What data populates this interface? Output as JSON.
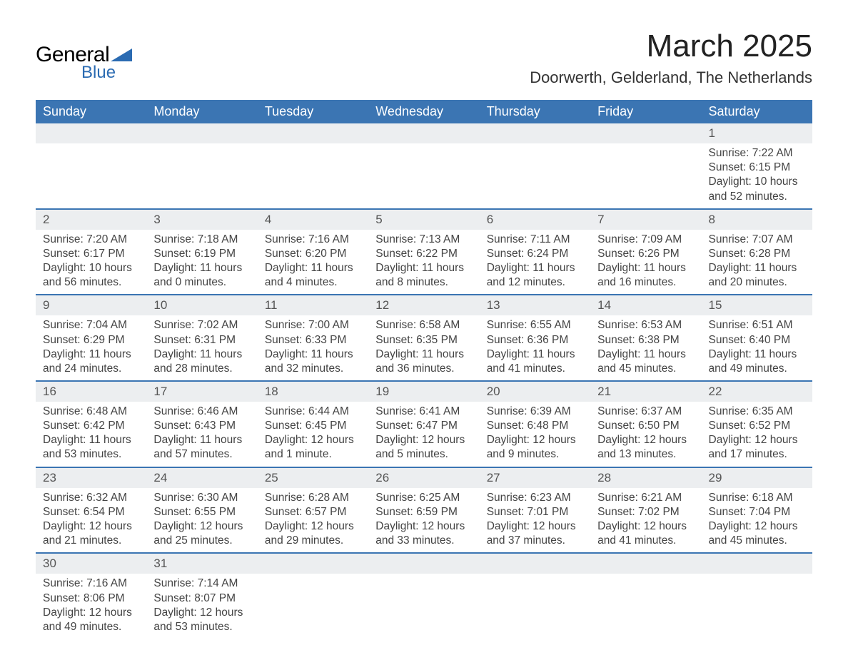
{
  "logo": {
    "text_general": "General",
    "text_blue": "Blue",
    "brand_color": "#2b6bb2"
  },
  "title": "March 2025",
  "location": "Doorwerth, Gelderland, The Netherlands",
  "colors": {
    "header_bg": "#3b75b3",
    "header_text": "#ffffff",
    "daynum_bg": "#eceef0",
    "border": "#3b75b3",
    "body_text": "#444444",
    "page_bg": "#ffffff"
  },
  "typography": {
    "title_fontsize_pt": 33,
    "location_fontsize_pt": 17,
    "dayheader_fontsize_pt": 14,
    "cell_fontsize_pt": 12
  },
  "day_headers": [
    "Sunday",
    "Monday",
    "Tuesday",
    "Wednesday",
    "Thursday",
    "Friday",
    "Saturday"
  ],
  "weeks": [
    [
      null,
      null,
      null,
      null,
      null,
      null,
      {
        "n": "1",
        "sunrise": "Sunrise: 7:22 AM",
        "sunset": "Sunset: 6:15 PM",
        "d1": "Daylight: 10 hours",
        "d2": "and 52 minutes."
      }
    ],
    [
      {
        "n": "2",
        "sunrise": "Sunrise: 7:20 AM",
        "sunset": "Sunset: 6:17 PM",
        "d1": "Daylight: 10 hours",
        "d2": "and 56 minutes."
      },
      {
        "n": "3",
        "sunrise": "Sunrise: 7:18 AM",
        "sunset": "Sunset: 6:19 PM",
        "d1": "Daylight: 11 hours",
        "d2": "and 0 minutes."
      },
      {
        "n": "4",
        "sunrise": "Sunrise: 7:16 AM",
        "sunset": "Sunset: 6:20 PM",
        "d1": "Daylight: 11 hours",
        "d2": "and 4 minutes."
      },
      {
        "n": "5",
        "sunrise": "Sunrise: 7:13 AM",
        "sunset": "Sunset: 6:22 PM",
        "d1": "Daylight: 11 hours",
        "d2": "and 8 minutes."
      },
      {
        "n": "6",
        "sunrise": "Sunrise: 7:11 AM",
        "sunset": "Sunset: 6:24 PM",
        "d1": "Daylight: 11 hours",
        "d2": "and 12 minutes."
      },
      {
        "n": "7",
        "sunrise": "Sunrise: 7:09 AM",
        "sunset": "Sunset: 6:26 PM",
        "d1": "Daylight: 11 hours",
        "d2": "and 16 minutes."
      },
      {
        "n": "8",
        "sunrise": "Sunrise: 7:07 AM",
        "sunset": "Sunset: 6:28 PM",
        "d1": "Daylight: 11 hours",
        "d2": "and 20 minutes."
      }
    ],
    [
      {
        "n": "9",
        "sunrise": "Sunrise: 7:04 AM",
        "sunset": "Sunset: 6:29 PM",
        "d1": "Daylight: 11 hours",
        "d2": "and 24 minutes."
      },
      {
        "n": "10",
        "sunrise": "Sunrise: 7:02 AM",
        "sunset": "Sunset: 6:31 PM",
        "d1": "Daylight: 11 hours",
        "d2": "and 28 minutes."
      },
      {
        "n": "11",
        "sunrise": "Sunrise: 7:00 AM",
        "sunset": "Sunset: 6:33 PM",
        "d1": "Daylight: 11 hours",
        "d2": "and 32 minutes."
      },
      {
        "n": "12",
        "sunrise": "Sunrise: 6:58 AM",
        "sunset": "Sunset: 6:35 PM",
        "d1": "Daylight: 11 hours",
        "d2": "and 36 minutes."
      },
      {
        "n": "13",
        "sunrise": "Sunrise: 6:55 AM",
        "sunset": "Sunset: 6:36 PM",
        "d1": "Daylight: 11 hours",
        "d2": "and 41 minutes."
      },
      {
        "n": "14",
        "sunrise": "Sunrise: 6:53 AM",
        "sunset": "Sunset: 6:38 PM",
        "d1": "Daylight: 11 hours",
        "d2": "and 45 minutes."
      },
      {
        "n": "15",
        "sunrise": "Sunrise: 6:51 AM",
        "sunset": "Sunset: 6:40 PM",
        "d1": "Daylight: 11 hours",
        "d2": "and 49 minutes."
      }
    ],
    [
      {
        "n": "16",
        "sunrise": "Sunrise: 6:48 AM",
        "sunset": "Sunset: 6:42 PM",
        "d1": "Daylight: 11 hours",
        "d2": "and 53 minutes."
      },
      {
        "n": "17",
        "sunrise": "Sunrise: 6:46 AM",
        "sunset": "Sunset: 6:43 PM",
        "d1": "Daylight: 11 hours",
        "d2": "and 57 minutes."
      },
      {
        "n": "18",
        "sunrise": "Sunrise: 6:44 AM",
        "sunset": "Sunset: 6:45 PM",
        "d1": "Daylight: 12 hours",
        "d2": "and 1 minute."
      },
      {
        "n": "19",
        "sunrise": "Sunrise: 6:41 AM",
        "sunset": "Sunset: 6:47 PM",
        "d1": "Daylight: 12 hours",
        "d2": "and 5 minutes."
      },
      {
        "n": "20",
        "sunrise": "Sunrise: 6:39 AM",
        "sunset": "Sunset: 6:48 PM",
        "d1": "Daylight: 12 hours",
        "d2": "and 9 minutes."
      },
      {
        "n": "21",
        "sunrise": "Sunrise: 6:37 AM",
        "sunset": "Sunset: 6:50 PM",
        "d1": "Daylight: 12 hours",
        "d2": "and 13 minutes."
      },
      {
        "n": "22",
        "sunrise": "Sunrise: 6:35 AM",
        "sunset": "Sunset: 6:52 PM",
        "d1": "Daylight: 12 hours",
        "d2": "and 17 minutes."
      }
    ],
    [
      {
        "n": "23",
        "sunrise": "Sunrise: 6:32 AM",
        "sunset": "Sunset: 6:54 PM",
        "d1": "Daylight: 12 hours",
        "d2": "and 21 minutes."
      },
      {
        "n": "24",
        "sunrise": "Sunrise: 6:30 AM",
        "sunset": "Sunset: 6:55 PM",
        "d1": "Daylight: 12 hours",
        "d2": "and 25 minutes."
      },
      {
        "n": "25",
        "sunrise": "Sunrise: 6:28 AM",
        "sunset": "Sunset: 6:57 PM",
        "d1": "Daylight: 12 hours",
        "d2": "and 29 minutes."
      },
      {
        "n": "26",
        "sunrise": "Sunrise: 6:25 AM",
        "sunset": "Sunset: 6:59 PM",
        "d1": "Daylight: 12 hours",
        "d2": "and 33 minutes."
      },
      {
        "n": "27",
        "sunrise": "Sunrise: 6:23 AM",
        "sunset": "Sunset: 7:01 PM",
        "d1": "Daylight: 12 hours",
        "d2": "and 37 minutes."
      },
      {
        "n": "28",
        "sunrise": "Sunrise: 6:21 AM",
        "sunset": "Sunset: 7:02 PM",
        "d1": "Daylight: 12 hours",
        "d2": "and 41 minutes."
      },
      {
        "n": "29",
        "sunrise": "Sunrise: 6:18 AM",
        "sunset": "Sunset: 7:04 PM",
        "d1": "Daylight: 12 hours",
        "d2": "and 45 minutes."
      }
    ],
    [
      {
        "n": "30",
        "sunrise": "Sunrise: 7:16 AM",
        "sunset": "Sunset: 8:06 PM",
        "d1": "Daylight: 12 hours",
        "d2": "and 49 minutes."
      },
      {
        "n": "31",
        "sunrise": "Sunrise: 7:14 AM",
        "sunset": "Sunset: 8:07 PM",
        "d1": "Daylight: 12 hours",
        "d2": "and 53 minutes."
      },
      null,
      null,
      null,
      null,
      null
    ]
  ]
}
